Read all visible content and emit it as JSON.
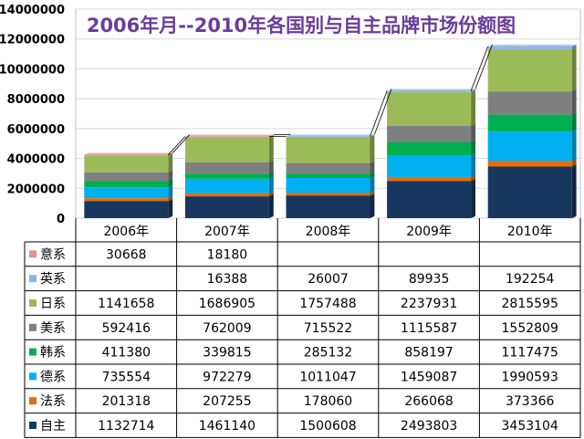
{
  "chart_data": {
    "type": "bar",
    "stacked": true,
    "title": "2006年月--2010年各国别与自主品牌市场份额图",
    "categories": [
      "2006年",
      "2007年",
      "2008年",
      "2009年",
      "2010年"
    ],
    "y_ticks": [
      "0",
      "2000000",
      "4000000",
      "6000000",
      "8000000",
      "10000000",
      "12000000",
      "14000000"
    ],
    "ylim": [
      0,
      14000000
    ],
    "legend_position": "data-table-left",
    "series": [
      {
        "name": "自主",
        "color": "#17375e",
        "values": [
          1132714,
          1461140,
          1500608,
          2493803,
          3453104
        ],
        "labels": [
          "1132714",
          "1461140",
          "1500608",
          "2493803",
          "3453104"
        ]
      },
      {
        "name": "法系",
        "color": "#e46c0a",
        "values": [
          201318,
          207255,
          178060,
          266068,
          373366
        ],
        "labels": [
          "201318",
          "207255",
          "178060",
          "266068",
          "373366"
        ]
      },
      {
        "name": "德系",
        "color": "#00b0f0",
        "values": [
          735554,
          972279,
          1011047,
          1459087,
          1990593
        ],
        "labels": [
          "735554",
          "972279",
          "1011047",
          "1459087",
          "1990593"
        ]
      },
      {
        "name": "韩系",
        "color": "#00b050",
        "values": [
          411380,
          339815,
          285132,
          858197,
          1117475
        ],
        "labels": [
          "411380",
          "339815",
          "285132",
          "858197",
          "1117475"
        ]
      },
      {
        "name": "美系",
        "color": "#7f7f7f",
        "values": [
          592416,
          762009,
          715522,
          1115587,
          1552809
        ],
        "labels": [
          "592416",
          "762009",
          "715522",
          "1115587",
          "1552809"
        ]
      },
      {
        "name": "日系",
        "color": "#9bbb59",
        "values": [
          1141658,
          1686905,
          1757488,
          2237931,
          2815595
        ],
        "labels": [
          "1141658",
          "1686905",
          "1757488",
          "2237931",
          "2815595"
        ]
      },
      {
        "name": "英系",
        "color": "#8eb4e3",
        "values": [
          null,
          16388,
          26007,
          89935,
          192254
        ],
        "labels": [
          "",
          "16388",
          "26007",
          "89935",
          "192254"
        ]
      },
      {
        "name": "意系",
        "color": "#d99694",
        "values": [
          30668,
          18180,
          null,
          null,
          null
        ],
        "labels": [
          "30668",
          "18180",
          "",
          "",
          ""
        ]
      }
    ]
  }
}
